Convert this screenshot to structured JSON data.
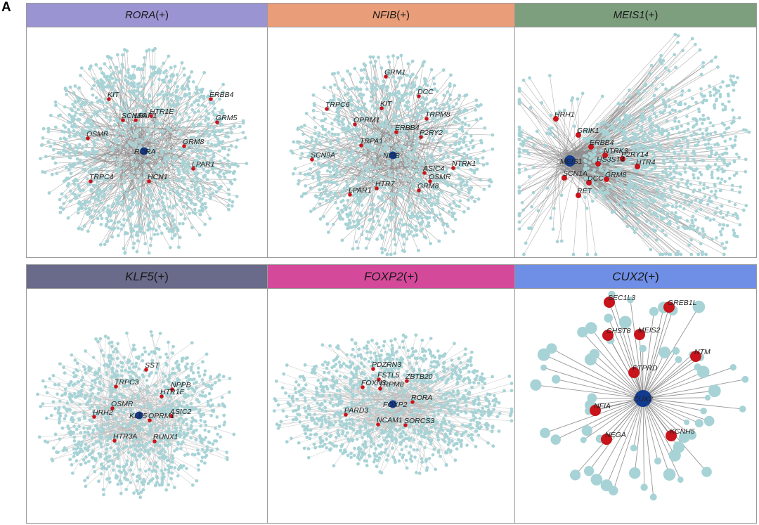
{
  "figure_label": "A",
  "colors": {
    "edge": "#8c8c8c",
    "edge_light": "#b9b9b9",
    "target_node": "#a7d3d6",
    "highlight_node": "#c8141a",
    "tf_node": "#123a8f",
    "panel_border": "#9a9a9a"
  },
  "panels": [
    {
      "id": "rora",
      "tf": "RORA",
      "suffix": "(+)",
      "header_color": "#9b94d2",
      "hub_label": "RORA",
      "seed": 11,
      "spokes": 360,
      "maxR": 148,
      "dots": 900,
      "style": "dense",
      "genes": [
        {
          "name": "KIT",
          "dx": -50,
          "dy": -74
        },
        {
          "name": "ERBB4",
          "dx": 95,
          "dy": -74
        },
        {
          "name": "LPAR1",
          "dx": -12,
          "dy": -44
        },
        {
          "name": "HTR1E",
          "dx": 10,
          "dy": -50
        },
        {
          "name": "SCN8A",
          "dx": -30,
          "dy": -44
        },
        {
          "name": "GRM5",
          "dx": 104,
          "dy": -41
        },
        {
          "name": "OSMR",
          "dx": -80,
          "dy": -18
        },
        {
          "name": "GRM8",
          "dx": 57,
          "dy": -7
        },
        {
          "name": "LPAR1",
          "dx": 70,
          "dy": 25
        },
        {
          "name": "TRPC4",
          "dx": -76,
          "dy": 43
        },
        {
          "name": "HCN1",
          "dx": 7,
          "dy": 43
        }
      ]
    },
    {
      "id": "nfib",
      "tf": "NFIB",
      "suffix": "(+)",
      "header_color": "#e99d78",
      "hub_label": "NFIB",
      "seed": 23,
      "spokes": 330,
      "maxR": 145,
      "dots": 850,
      "style": "dense",
      "genes": [
        {
          "name": "GRM1",
          "dx": -10,
          "dy": -112
        },
        {
          "name": "DCC",
          "dx": 37,
          "dy": -84
        },
        {
          "name": "TRPC6",
          "dx": -94,
          "dy": -66
        },
        {
          "name": "KIT",
          "dx": -16,
          "dy": -67
        },
        {
          "name": "TRPM8",
          "dx": 48,
          "dy": -52
        },
        {
          "name": "OPRM1",
          "dx": -54,
          "dy": -44
        },
        {
          "name": "ERBB4",
          "dx": 5,
          "dy": -33
        },
        {
          "name": "P2RY2",
          "dx": 40,
          "dy": -26
        },
        {
          "name": "TRPA1",
          "dx": -45,
          "dy": -14
        },
        {
          "name": "SCN9A",
          "dx": -115,
          "dy": 6
        },
        {
          "name": "NTRK1",
          "dx": 86,
          "dy": 18
        },
        {
          "name": "ASIC4",
          "dx": 45,
          "dy": 25
        },
        {
          "name": "OSMR",
          "dx": 53,
          "dy": 37
        },
        {
          "name": "HTR7",
          "dx": -23,
          "dy": 47
        },
        {
          "name": "GRM8",
          "dx": 37,
          "dy": 50
        },
        {
          "name": "LPAR1",
          "dx": -61,
          "dy": 56
        }
      ]
    },
    {
      "id": "meis1",
      "tf": "MEIS1",
      "suffix": "(+)",
      "header_color": "#7d9f7e",
      "hub_label": "MEIS1",
      "seed": 37,
      "spokes": 360,
      "maxR": 150,
      "dots": 650,
      "style": "skewed",
      "genes": [
        {
          "name": "HRH1",
          "dx": -20,
          "dy": -60
        },
        {
          "name": "GRIK1",
          "dx": 12,
          "dy": -37
        },
        {
          "name": "ERBB4",
          "dx": 30,
          "dy": -20
        },
        {
          "name": "NTRK3",
          "dx": 50,
          "dy": -8
        },
        {
          "name": "P2RY14",
          "dx": 75,
          "dy": -3
        },
        {
          "name": "HS3ST4",
          "dx": 40,
          "dy": 4
        },
        {
          "name": "HTR4",
          "dx": 96,
          "dy": 8
        },
        {
          "name": "SCN1A",
          "dx": -8,
          "dy": 24
        },
        {
          "name": "DCC",
          "dx": 27,
          "dy": 31
        },
        {
          "name": "GRM8",
          "dx": 52,
          "dy": 26
        },
        {
          "name": "RET",
          "dx": 12,
          "dy": 49
        }
      ]
    },
    {
      "id": "klf5",
      "tf": "KLF5",
      "suffix": "(+)",
      "header_color": "#6a6b8a",
      "hub_label": "KLF5",
      "seed": 53,
      "spokes": 300,
      "maxR": 150,
      "dots": 700,
      "style": "medium",
      "genes": [
        {
          "name": "SST",
          "dx": 10,
          "dy": -65
        },
        {
          "name": "TRPC3",
          "dx": -33,
          "dy": -41
        },
        {
          "name": "NPPB",
          "dx": 47,
          "dy": -37
        },
        {
          "name": "HTR1E",
          "dx": 32,
          "dy": -27
        },
        {
          "name": "OSMR",
          "dx": -38,
          "dy": -10
        },
        {
          "name": "HRH2",
          "dx": -64,
          "dy": 2
        },
        {
          "name": "ASIC2",
          "dx": 46,
          "dy": 1
        },
        {
          "name": "OPRM1",
          "dx": 15,
          "dy": 7
        },
        {
          "name": "HTR3A",
          "dx": -35,
          "dy": 36
        },
        {
          "name": "RUNX1",
          "dx": 22,
          "dy": 37
        }
      ]
    },
    {
      "id": "foxp2",
      "tf": "FOXP2",
      "suffix": "(+)",
      "header_color": "#d4499a",
      "hub_label": "FOXP2",
      "seed": 71,
      "spokes": 340,
      "maxR": 165,
      "dots": 820,
      "style": "light",
      "genes": [
        {
          "name": "PDZRN3",
          "dx": -28,
          "dy": -50
        },
        {
          "name": "ZBTB20",
          "dx": 20,
          "dy": -33
        },
        {
          "name": "FSTL5",
          "dx": -20,
          "dy": -35
        },
        {
          "name": "FOXN3",
          "dx": -43,
          "dy": -24
        },
        {
          "name": "TRPM8",
          "dx": -18,
          "dy": -22
        },
        {
          "name": "RORA",
          "dx": 28,
          "dy": -3
        },
        {
          "name": "PARD3",
          "dx": -67,
          "dy": 15
        },
        {
          "name": "NCAM1",
          "dx": -21,
          "dy": 29
        },
        {
          "name": "SORCS3",
          "dx": 18,
          "dy": 30
        }
      ]
    },
    {
      "id": "cux2",
      "tf": "CUX2",
      "suffix": "(+)",
      "header_color": "#6f8ee6",
      "hub_label": "CUX2",
      "seed": 97,
      "spokes": 60,
      "maxR": 150,
      "dots": 0,
      "style": "sparse",
      "genes": [
        {
          "name": "SEC1L3",
          "dx": -48,
          "dy": -137
        },
        {
          "name": "GREB1L",
          "dx": 37,
          "dy": -130
        },
        {
          "name": "CHST8",
          "dx": -50,
          "dy": -90
        },
        {
          "name": "MEIS2",
          "dx": -5,
          "dy": -91
        },
        {
          "name": "NTM",
          "dx": 75,
          "dy": -60
        },
        {
          "name": "PTPRD",
          "dx": -13,
          "dy": -37
        },
        {
          "name": "NFIA",
          "dx": -68,
          "dy": 17
        },
        {
          "name": "KCNH5",
          "dx": 40,
          "dy": 53
        },
        {
          "name": "NEGA",
          "dx": -52,
          "dy": 58
        }
      ]
    }
  ]
}
